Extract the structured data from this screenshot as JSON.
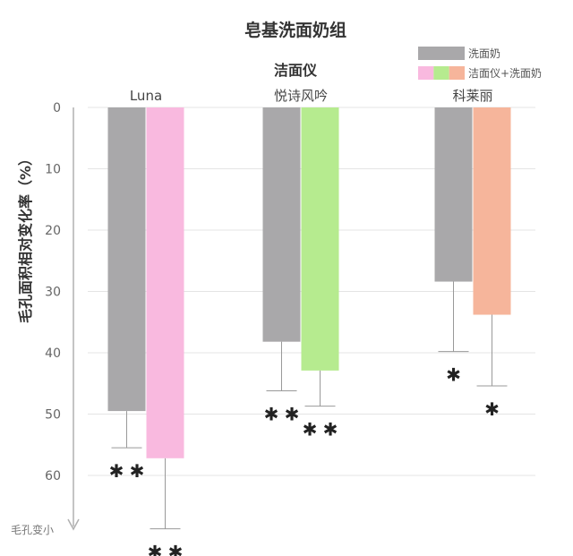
{
  "chart_data": {
    "type": "bar",
    "title": "皂基洗面奶组",
    "ylabel": "毛孔面积相对变化率（%）",
    "y_direction_label": "毛孔变小",
    "ylim": [
      0,
      60
    ],
    "yticks": [
      0,
      10,
      20,
      30,
      40,
      50,
      60
    ],
    "y_inverted": true,
    "category_group_label": "洁面仪",
    "categories": [
      "Luna",
      "悦诗风吟",
      "科莱丽"
    ],
    "series": [
      {
        "name": "洗面奶",
        "values": [
          49.5,
          38.2,
          28.4
        ],
        "error": [
          6.0,
          8.0,
          11.4
        ],
        "significance": [
          "**",
          "**",
          "*"
        ],
        "colors": [
          "#a9a8aa",
          "#a9a8aa",
          "#a9a8aa"
        ]
      },
      {
        "name": "洁面仪+洗面奶",
        "values": [
          57.2,
          42.9,
          33.8
        ],
        "error": [
          11.5,
          5.8,
          11.6
        ],
        "significance": [
          "**",
          "**",
          "*"
        ],
        "colors": [
          "#f9b9df",
          "#b6eb8f",
          "#f6b59b"
        ]
      }
    ],
    "legend": {
      "position": "top-right",
      "entries": [
        {
          "label": "洗面奶",
          "colors": [
            "#a9a8aa"
          ]
        },
        {
          "label": "洁面仪+洗面奶",
          "colors": [
            "#f9b9df",
            "#b6eb8f",
            "#f6b59b"
          ]
        }
      ]
    },
    "grid": true
  }
}
